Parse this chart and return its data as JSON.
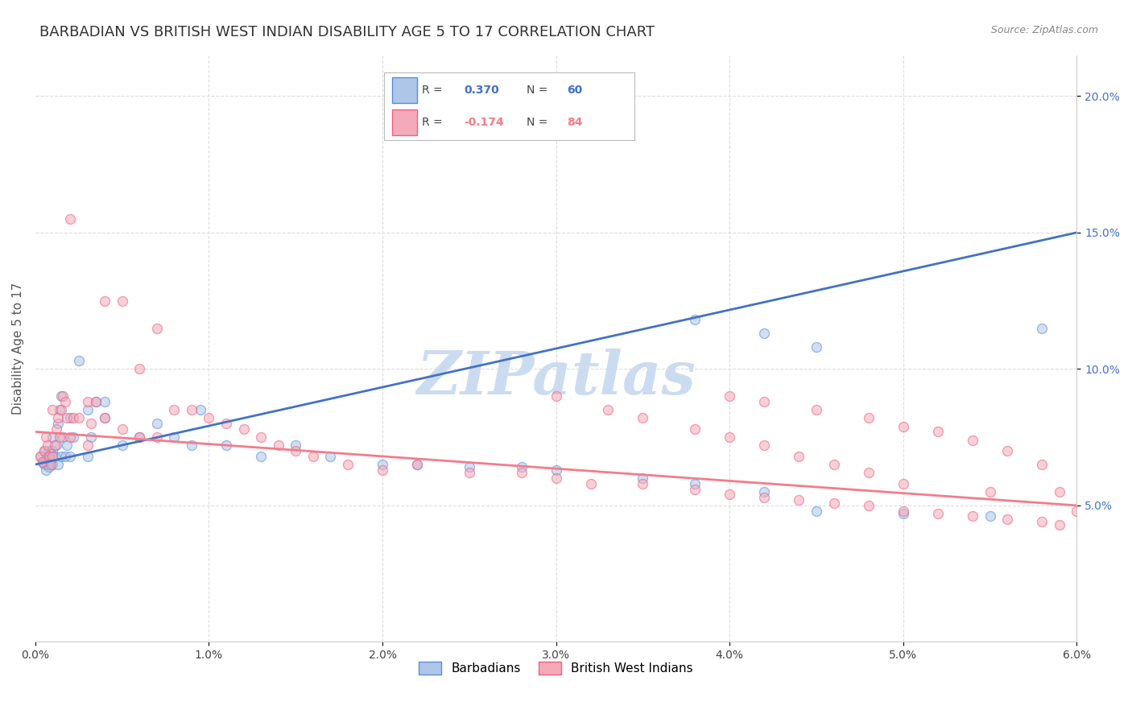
{
  "title": "BARBADIAN VS BRITISH WEST INDIAN DISABILITY AGE 5 TO 17 CORRELATION CHART",
  "source": "Source: ZipAtlas.com",
  "ylabel_label": "Disability Age 5 to 17",
  "xlim": [
    0.0,
    0.06
  ],
  "ylim": [
    0.0,
    0.215
  ],
  "barbadian_R": "0.370",
  "barbadian_N": "60",
  "bwi_R": "-0.174",
  "bwi_N": "84",
  "barbadian_color": "#aec6e8",
  "bwi_color": "#f4aab9",
  "barbadian_edge_color": "#5b8dd9",
  "bwi_edge_color": "#f06080",
  "barbadian_line_color": "#4472c4",
  "bwi_line_color": "#f47c8a",
  "watermark": "ZIPatlas",
  "watermark_color": "#ccdcf0",
  "legend_label_barbadian": "Barbadians",
  "legend_label_bwi": "British West Indians",
  "barbadian_scatter_x": [
    0.0003,
    0.0004,
    0.0005,
    0.0005,
    0.0006,
    0.0006,
    0.0007,
    0.0007,
    0.0008,
    0.0008,
    0.0009,
    0.0009,
    0.001,
    0.001,
    0.001,
    0.0011,
    0.0012,
    0.0013,
    0.0013,
    0.0014,
    0.0015,
    0.0015,
    0.0016,
    0.0017,
    0.0018,
    0.002,
    0.002,
    0.0022,
    0.0025,
    0.003,
    0.003,
    0.0032,
    0.0035,
    0.004,
    0.004,
    0.005,
    0.006,
    0.007,
    0.008,
    0.009,
    0.0095,
    0.011,
    0.013,
    0.015,
    0.017,
    0.02,
    0.022,
    0.025,
    0.028,
    0.03,
    0.035,
    0.038,
    0.042,
    0.045,
    0.05,
    0.055,
    0.058,
    0.045,
    0.042,
    0.038
  ],
  "barbadian_scatter_y": [
    0.068,
    0.066,
    0.065,
    0.07,
    0.067,
    0.063,
    0.065,
    0.068,
    0.064,
    0.07,
    0.066,
    0.069,
    0.065,
    0.07,
    0.075,
    0.068,
    0.072,
    0.065,
    0.08,
    0.085,
    0.068,
    0.09,
    0.075,
    0.068,
    0.072,
    0.082,
    0.068,
    0.075,
    0.103,
    0.085,
    0.068,
    0.075,
    0.088,
    0.082,
    0.088,
    0.072,
    0.075,
    0.08,
    0.075,
    0.072,
    0.085,
    0.072,
    0.068,
    0.072,
    0.068,
    0.065,
    0.065,
    0.064,
    0.064,
    0.063,
    0.06,
    0.058,
    0.055,
    0.048,
    0.047,
    0.046,
    0.115,
    0.108,
    0.113,
    0.118
  ],
  "bwi_scatter_x": [
    0.0003,
    0.0004,
    0.0005,
    0.0006,
    0.0007,
    0.0008,
    0.0009,
    0.001,
    0.001,
    0.0011,
    0.0012,
    0.0013,
    0.0014,
    0.0015,
    0.0016,
    0.0017,
    0.0018,
    0.002,
    0.002,
    0.0022,
    0.0025,
    0.003,
    0.003,
    0.0032,
    0.0035,
    0.004,
    0.004,
    0.005,
    0.005,
    0.006,
    0.006,
    0.007,
    0.007,
    0.008,
    0.009,
    0.01,
    0.011,
    0.012,
    0.013,
    0.014,
    0.015,
    0.016,
    0.018,
    0.02,
    0.022,
    0.025,
    0.028,
    0.03,
    0.032,
    0.035,
    0.038,
    0.04,
    0.042,
    0.044,
    0.046,
    0.048,
    0.05,
    0.052,
    0.054,
    0.056,
    0.058,
    0.059,
    0.04,
    0.042,
    0.045,
    0.048,
    0.05,
    0.052,
    0.054,
    0.056,
    0.058,
    0.059,
    0.06,
    0.055,
    0.05,
    0.048,
    0.046,
    0.044,
    0.042,
    0.04,
    0.038,
    0.035,
    0.033,
    0.03
  ],
  "bwi_scatter_y": [
    0.068,
    0.066,
    0.07,
    0.075,
    0.072,
    0.068,
    0.065,
    0.068,
    0.085,
    0.072,
    0.078,
    0.082,
    0.075,
    0.085,
    0.09,
    0.088,
    0.082,
    0.075,
    0.155,
    0.082,
    0.082,
    0.088,
    0.072,
    0.08,
    0.088,
    0.082,
    0.125,
    0.078,
    0.125,
    0.075,
    0.1,
    0.075,
    0.115,
    0.085,
    0.085,
    0.082,
    0.08,
    0.078,
    0.075,
    0.072,
    0.07,
    0.068,
    0.065,
    0.063,
    0.065,
    0.062,
    0.062,
    0.06,
    0.058,
    0.058,
    0.056,
    0.054,
    0.053,
    0.052,
    0.051,
    0.05,
    0.048,
    0.047,
    0.046,
    0.045,
    0.044,
    0.043,
    0.09,
    0.088,
    0.085,
    0.082,
    0.079,
    0.077,
    0.074,
    0.07,
    0.065,
    0.055,
    0.048,
    0.055,
    0.058,
    0.062,
    0.065,
    0.068,
    0.072,
    0.075,
    0.078,
    0.082,
    0.085,
    0.09
  ],
  "barbadian_line_x": [
    0.0,
    0.06
  ],
  "barbadian_line_y": [
    0.065,
    0.15
  ],
  "bwi_line_x": [
    0.0,
    0.06
  ],
  "bwi_line_y": [
    0.077,
    0.05
  ],
  "background_color": "#ffffff",
  "grid_color": "#dddddd",
  "title_fontsize": 13,
  "label_fontsize": 11,
  "tick_fontsize": 10,
  "scatter_size": 75,
  "scatter_alpha": 0.55,
  "scatter_linewidth": 1.0
}
